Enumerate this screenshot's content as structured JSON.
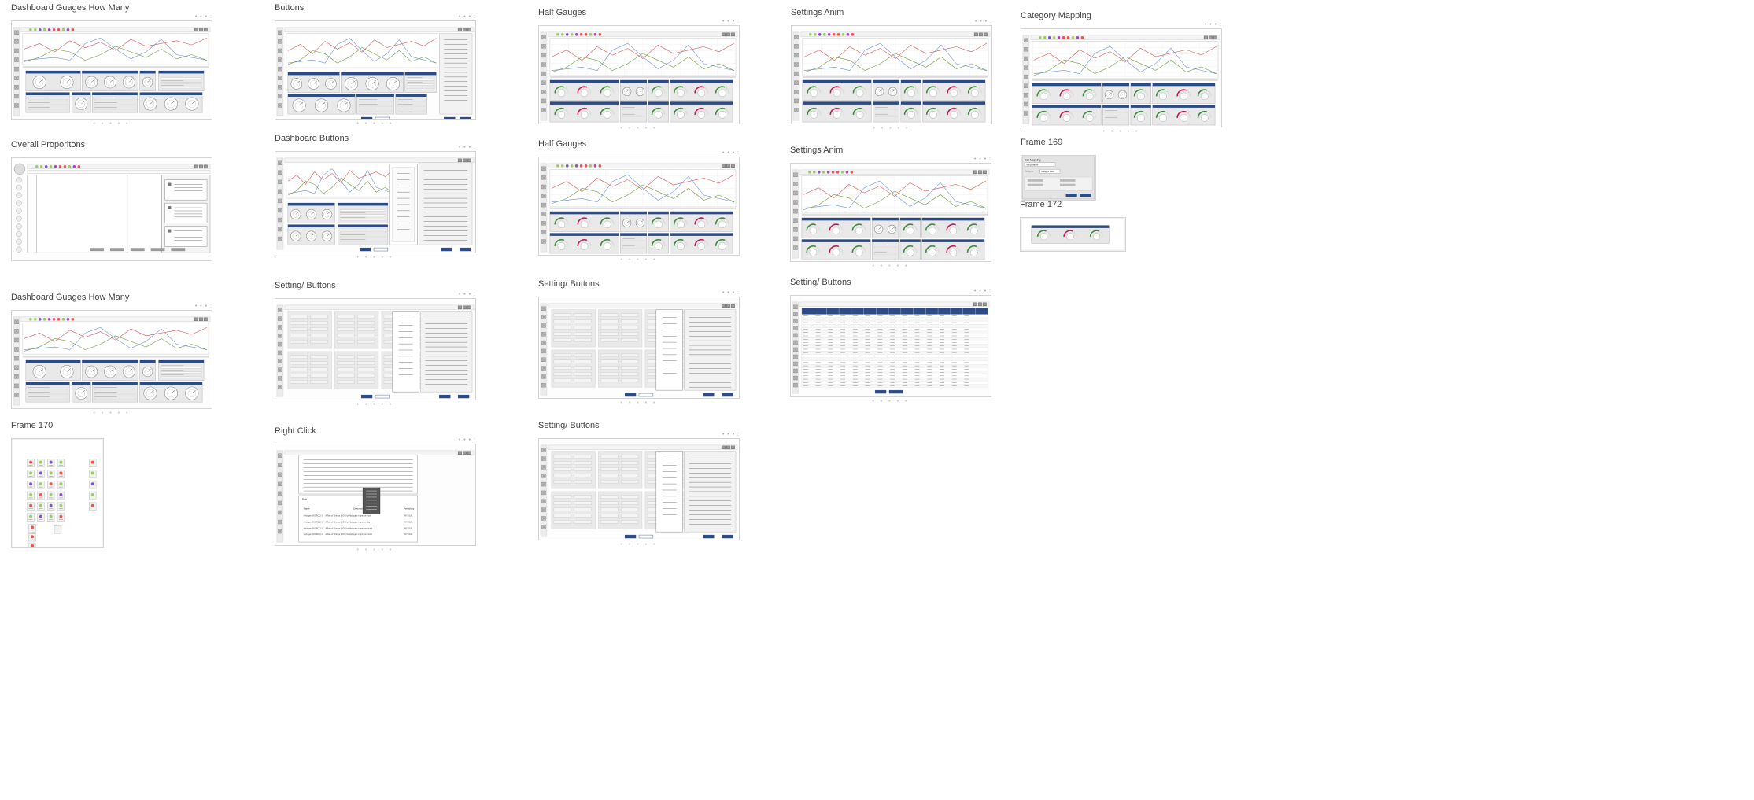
{
  "frames": [
    {
      "id": "f1",
      "label": "Dashboard Guages How Many",
      "kind": "gauges"
    },
    {
      "id": "f2",
      "label": "Buttons",
      "kind": "buttons"
    },
    {
      "id": "f3",
      "label": "Half Gauges",
      "kind": "half"
    },
    {
      "id": "f4",
      "label": "Settings Anim",
      "kind": "half"
    },
    {
      "id": "f5",
      "label": "Category Mapping",
      "kind": "half"
    },
    {
      "id": "f6",
      "label": "Overall Proporitons",
      "kind": "proportions"
    },
    {
      "id": "f7",
      "label": "Dashboard Buttons",
      "kind": "dashbuttons"
    },
    {
      "id": "f8",
      "label": "Half Gauges",
      "kind": "half"
    },
    {
      "id": "f9",
      "label": "Settings Anim",
      "kind": "half"
    },
    {
      "id": "f10",
      "label": "Frame 169",
      "kind": "dialog"
    },
    {
      "id": "f11",
      "label": "Frame 172",
      "kind": "mini"
    },
    {
      "id": "f12",
      "label": "Dashboard Guages How Many",
      "kind": "gauges"
    },
    {
      "id": "f13",
      "label": "Setting/ Buttons",
      "kind": "settings"
    },
    {
      "id": "f14",
      "label": "Setting/ Buttons",
      "kind": "settings"
    },
    {
      "id": "f15",
      "label": "Setting/ Buttons",
      "kind": "table"
    },
    {
      "id": "f16",
      "label": "Frame 170",
      "kind": "icons"
    },
    {
      "id": "f17",
      "label": "Right Click",
      "kind": "rightclick"
    },
    {
      "id": "f18",
      "label": "Setting/ Buttons",
      "kind": "settings"
    }
  ],
  "colors": {
    "navy": "#2c4a86",
    "red_line": "#d9534f",
    "blue_line": "#6b8fd6",
    "green_line": "#6a9a3a",
    "gauge_green": "#3c8a3c",
    "gauge_pink": "#c2185b",
    "panel": "#e6e6e6",
    "border": "#d4d4d4"
  },
  "dialog": {
    "title": "Cell Mapping",
    "field_value": "Temperature",
    "field2_label": "Category",
    "field2_value": "Gauges Here"
  },
  "right_click": {
    "section_title": "Rule",
    "columns": [
      "Name",
      "Description",
      "Periodicity"
    ],
    "rows": [
      {
        "name": "Hydrogen (HO-RCC)-1",
        "desc": "A Rate of Change (ROC) for Hydrogen in ppm per hour",
        "period": "PHYSICAL"
      },
      {
        "name": "Hydrogen (HO-RCC)-1",
        "desc": "A Rate of Change (ROC) for Hydrogen in ppm per day",
        "period": "PHYSICAL"
      },
      {
        "name": "Hydrogen (HO-RCC)-1",
        "desc": "A Rate of Change (ROC) for Hydrogen in ppm per month",
        "period": "PHYSICAL"
      },
      {
        "name": "Hydrogen (HO-RCC)-1",
        "desc": "A Rate of Change (ROC) for Hydrogen in ppm per month",
        "period": "PHYSICAL"
      }
    ]
  },
  "pager_dots": "• • • • •",
  "corner_dots": "• • • :"
}
